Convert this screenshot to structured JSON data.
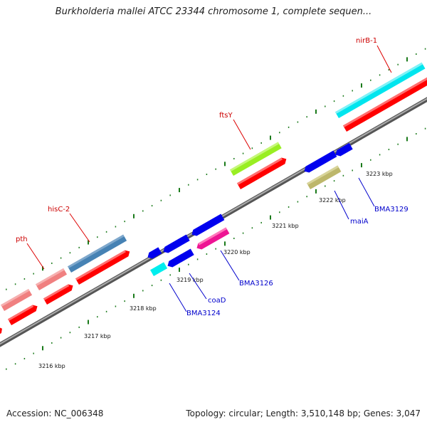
{
  "header": {
    "title": "Burkholderia mallei ATCC 23344 chromosome 1, complete sequen..."
  },
  "footer": {
    "accession": "Accession: NC_006348",
    "summary": "Topology: circular; Length: 3,510,148 bp; Genes: 3,047"
  },
  "map": {
    "backbone_color": "#888888",
    "ticks": [
      "3216 kbp",
      "3217 kbp",
      "3218 kbp",
      "3219 kbp",
      "3220 kbp",
      "3221 kbp",
      "3222 kbp",
      "3223 kbp"
    ],
    "labels": {
      "top": [
        "pth",
        "hisC-2",
        "ftsY",
        "nirB-1"
      ],
      "bottom": [
        "BMA3124",
        "coaD",
        "BMA3126",
        "maiA",
        "BMA3129"
      ]
    },
    "label_colors": {
      "top": "#cc0000",
      "bottom": "#0000cc"
    }
  }
}
